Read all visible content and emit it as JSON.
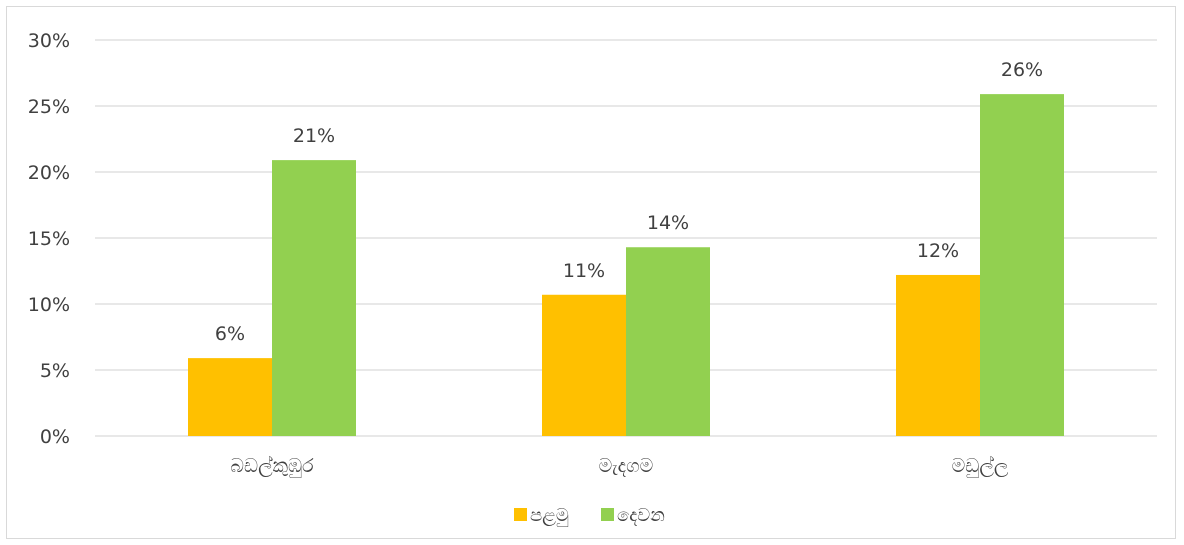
{
  "chart_data": {
    "type": "bar",
    "categories": [
      "බඩල්කුඹුර",
      "මැදගම",
      "මඩුල්ල"
    ],
    "series": [
      {
        "name": "පළමු",
        "values": [
          6,
          11,
          12
        ],
        "labels": [
          "6%",
          "11%",
          "12%"
        ],
        "color": "#ffc000"
      },
      {
        "name": "දෙවන",
        "values": [
          21,
          14,
          26
        ],
        "labels": [
          "21%",
          "14%",
          "26%"
        ],
        "color": "#92d050"
      }
    ],
    "values_precise": [
      [
        5.9,
        10.7,
        12.2
      ],
      [
        20.9,
        14.3,
        25.9
      ]
    ],
    "ylim": [
      0,
      30
    ],
    "yticks": [
      "0%",
      "5%",
      "10%",
      "15%",
      "20%",
      "25%",
      "30%"
    ],
    "grid": true,
    "legend_position": "bottom",
    "gridline_color": "#d9d9d9",
    "axis_color": "#d9d9d9"
  }
}
